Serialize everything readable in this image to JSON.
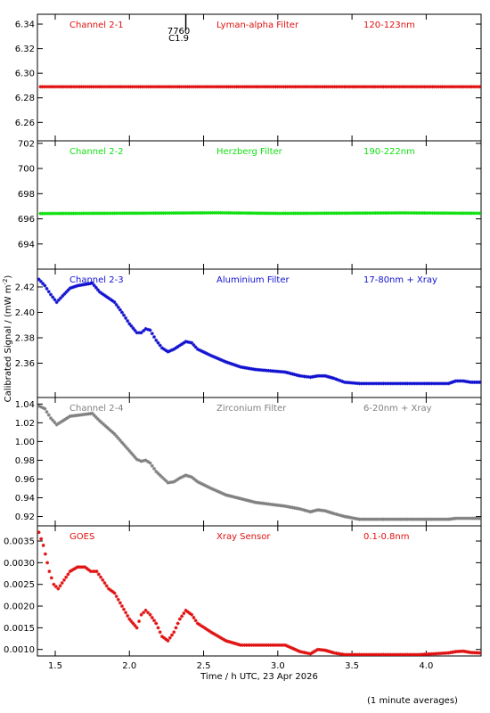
{
  "footer": {
    "note": "(1 minute averages)"
  },
  "chart_data": {
    "type": "scatter",
    "xlabel": "Time / h UTC, 23 Apr 2026",
    "ylabel": "Calibrated Signal / (mW m",
    "ylabel_superscript": "-2",
    "ylabel_close": ")",
    "xlim": [
      1.38,
      4.37
    ],
    "xticks": [
      1.5,
      2.0,
      2.5,
      3.0,
      3.5,
      4.0
    ],
    "xtick_labels": [
      "1.5",
      "2.0",
      "2.5",
      "3.0",
      "3.5",
      "4.0"
    ],
    "marker_annotation": {
      "x": 2.38,
      "line1": "7760",
      "line2": "C1.9"
    },
    "panels": [
      {
        "channel": "Channel 2-1",
        "filter": "Lyman-alpha Filter",
        "band": "120-123nm",
        "color": "#e01010",
        "ylim": [
          6.245,
          6.348
        ],
        "yticks": [
          6.26,
          6.28,
          6.3,
          6.32,
          6.34
        ],
        "ytick_labels": [
          "6.26",
          "6.28",
          "6.30",
          "6.32",
          "6.34"
        ],
        "points": [
          [
            1.4,
            6.289
          ],
          [
            4.36,
            6.289
          ]
        ]
      },
      {
        "channel": "Channel 2-2",
        "filter": "Herzberg Filter",
        "band": "190-222nm",
        "color": "#10e010",
        "ylim": [
          692.0,
          702.2
        ],
        "yticks": [
          694,
          696,
          698,
          700,
          702
        ],
        "ytick_labels": [
          "694",
          "696",
          "698",
          "700",
          "702"
        ],
        "points": [
          [
            1.4,
            696.42
          ],
          [
            2.15,
            696.45
          ],
          [
            2.6,
            696.48
          ],
          [
            3.0,
            696.43
          ],
          [
            3.5,
            696.45
          ],
          [
            3.83,
            696.47
          ],
          [
            4.36,
            696.44
          ]
        ]
      },
      {
        "channel": "Channel 2-3",
        "filter": "Aluminium Filter",
        "band": "17-80nm + Xray",
        "color": "#1010d0",
        "ylim": [
          2.333,
          2.434
        ],
        "yticks": [
          2.36,
          2.38,
          2.4,
          2.42
        ],
        "ytick_labels": [
          "2.36",
          "2.38",
          "2.40",
          "2.42"
        ],
        "points": [
          [
            1.39,
            2.426
          ],
          [
            1.43,
            2.421
          ],
          [
            1.47,
            2.414
          ],
          [
            1.51,
            2.408
          ],
          [
            1.55,
            2.413
          ],
          [
            1.6,
            2.419
          ],
          [
            1.65,
            2.421
          ],
          [
            1.7,
            2.422
          ],
          [
            1.75,
            2.423
          ],
          [
            1.8,
            2.416
          ],
          [
            1.85,
            2.412
          ],
          [
            1.9,
            2.408
          ],
          [
            1.95,
            2.4
          ],
          [
            2.0,
            2.391
          ],
          [
            2.05,
            2.384
          ],
          [
            2.08,
            2.384
          ],
          [
            2.11,
            2.387
          ],
          [
            2.14,
            2.386
          ],
          [
            2.18,
            2.378
          ],
          [
            2.22,
            2.372
          ],
          [
            2.26,
            2.369
          ],
          [
            2.3,
            2.371
          ],
          [
            2.34,
            2.374
          ],
          [
            2.38,
            2.377
          ],
          [
            2.42,
            2.376
          ],
          [
            2.46,
            2.371
          ],
          [
            2.55,
            2.366
          ],
          [
            2.65,
            2.361
          ],
          [
            2.75,
            2.357
          ],
          [
            2.85,
            2.355
          ],
          [
            2.95,
            2.354
          ],
          [
            3.05,
            2.353
          ],
          [
            3.15,
            2.35
          ],
          [
            3.22,
            2.349
          ],
          [
            3.27,
            2.35
          ],
          [
            3.32,
            2.35
          ],
          [
            3.38,
            2.348
          ],
          [
            3.45,
            2.345
          ],
          [
            3.55,
            2.344
          ],
          [
            3.65,
            2.344
          ],
          [
            3.75,
            2.344
          ],
          [
            3.85,
            2.344
          ],
          [
            3.95,
            2.344
          ],
          [
            4.05,
            2.344
          ],
          [
            4.15,
            2.344
          ],
          [
            4.2,
            2.346
          ],
          [
            4.25,
            2.346
          ],
          [
            4.3,
            2.345
          ],
          [
            4.36,
            2.345
          ]
        ]
      },
      {
        "channel": "Channel 2-4",
        "filter": "Zirconium Filter",
        "band": "6-20nm + Xray",
        "color": "#808080",
        "ylim": [
          0.91,
          1.047
        ],
        "yticks": [
          0.92,
          0.94,
          0.96,
          0.98,
          1.0,
          1.02,
          1.04
        ],
        "ytick_labels": [
          "0.92",
          "0.94",
          "0.96",
          "0.98",
          "1.00",
          "1.02",
          "1.04"
        ],
        "points": [
          [
            1.39,
            1.038
          ],
          [
            1.43,
            1.035
          ],
          [
            1.47,
            1.025
          ],
          [
            1.51,
            1.018
          ],
          [
            1.55,
            1.022
          ],
          [
            1.6,
            1.027
          ],
          [
            1.65,
            1.028
          ],
          [
            1.7,
            1.029
          ],
          [
            1.75,
            1.03
          ],
          [
            1.8,
            1.022
          ],
          [
            1.85,
            1.015
          ],
          [
            1.9,
            1.008
          ],
          [
            1.95,
            0.999
          ],
          [
            2.0,
            0.99
          ],
          [
            2.05,
            0.981
          ],
          [
            2.08,
            0.979
          ],
          [
            2.11,
            0.98
          ],
          [
            2.14,
            0.977
          ],
          [
            2.18,
            0.968
          ],
          [
            2.22,
            0.962
          ],
          [
            2.26,
            0.956
          ],
          [
            2.3,
            0.957
          ],
          [
            2.34,
            0.961
          ],
          [
            2.38,
            0.964
          ],
          [
            2.42,
            0.962
          ],
          [
            2.46,
            0.957
          ],
          [
            2.55,
            0.95
          ],
          [
            2.65,
            0.943
          ],
          [
            2.75,
            0.939
          ],
          [
            2.85,
            0.935
          ],
          [
            2.95,
            0.933
          ],
          [
            3.05,
            0.931
          ],
          [
            3.15,
            0.928
          ],
          [
            3.22,
            0.925
          ],
          [
            3.27,
            0.927
          ],
          [
            3.32,
            0.926
          ],
          [
            3.38,
            0.923
          ],
          [
            3.45,
            0.92
          ],
          [
            3.55,
            0.917
          ],
          [
            3.65,
            0.917
          ],
          [
            3.75,
            0.917
          ],
          [
            3.85,
            0.917
          ],
          [
            3.95,
            0.917
          ],
          [
            4.05,
            0.917
          ],
          [
            4.15,
            0.917
          ],
          [
            4.2,
            0.918
          ],
          [
            4.25,
            0.918
          ],
          [
            4.3,
            0.918
          ],
          [
            4.36,
            0.918
          ]
        ]
      },
      {
        "channel": "GOES",
        "filter": "Xray Sensor",
        "band": "0.1-0.8nm",
        "color": "#e01010",
        "ylim": [
          0.00085,
          0.00385
        ],
        "yticks": [
          0.001,
          0.0015,
          0.002,
          0.0025,
          0.003,
          0.0035
        ],
        "ytick_labels": [
          "0.0010",
          "0.0015",
          "0.0020",
          "0.0025",
          "0.0030",
          "0.0035"
        ],
        "points": [
          [
            1.39,
            0.0037
          ],
          [
            1.42,
            0.0034
          ],
          [
            1.46,
            0.0028
          ],
          [
            1.49,
            0.0025
          ],
          [
            1.52,
            0.0024
          ],
          [
            1.56,
            0.0026
          ],
          [
            1.6,
            0.0028
          ],
          [
            1.65,
            0.0029
          ],
          [
            1.7,
            0.0029
          ],
          [
            1.74,
            0.0028
          ],
          [
            1.78,
            0.0028
          ],
          [
            1.82,
            0.0026
          ],
          [
            1.86,
            0.0024
          ],
          [
            1.9,
            0.0023
          ],
          [
            1.95,
            0.002
          ],
          [
            2.0,
            0.0017
          ],
          [
            2.05,
            0.0015
          ],
          [
            2.08,
            0.0018
          ],
          [
            2.11,
            0.0019
          ],
          [
            2.14,
            0.0018
          ],
          [
            2.18,
            0.0016
          ],
          [
            2.22,
            0.0013
          ],
          [
            2.26,
            0.0012
          ],
          [
            2.3,
            0.0014
          ],
          [
            2.34,
            0.0017
          ],
          [
            2.38,
            0.0019
          ],
          [
            2.42,
            0.0018
          ],
          [
            2.46,
            0.0016
          ],
          [
            2.55,
            0.0014
          ],
          [
            2.65,
            0.0012
          ],
          [
            2.75,
            0.0011
          ],
          [
            2.85,
            0.0011
          ],
          [
            2.95,
            0.0011
          ],
          [
            3.05,
            0.0011
          ],
          [
            3.15,
            0.00095
          ],
          [
            3.22,
            0.0009
          ],
          [
            3.27,
            0.001
          ],
          [
            3.32,
            0.00098
          ],
          [
            3.38,
            0.00092
          ],
          [
            3.45,
            0.00088
          ],
          [
            3.55,
            0.00088
          ],
          [
            3.65,
            0.00088
          ],
          [
            3.75,
            0.00088
          ],
          [
            3.85,
            0.00088
          ],
          [
            3.95,
            0.00088
          ],
          [
            4.05,
            0.0009
          ],
          [
            4.15,
            0.00092
          ],
          [
            4.2,
            0.00095
          ],
          [
            4.25,
            0.00096
          ],
          [
            4.3,
            0.00093
          ],
          [
            4.36,
            0.00092
          ]
        ]
      }
    ]
  }
}
